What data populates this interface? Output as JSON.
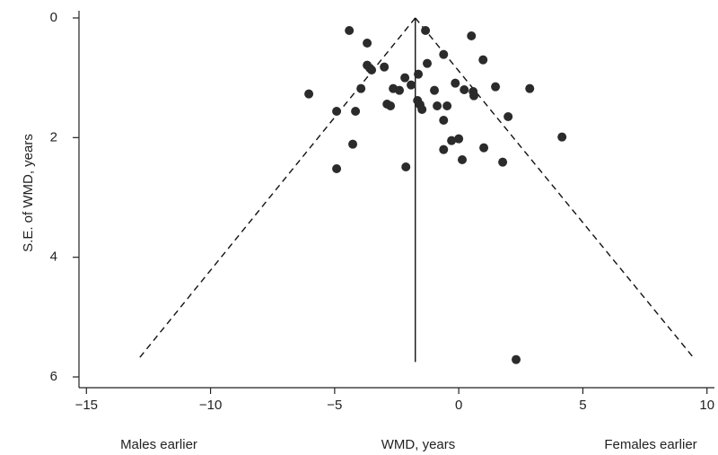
{
  "chart_data": {
    "type": "scatter",
    "xlabel": "WMD, years",
    "ylabel": "S.E. of WMD, years",
    "annotations": [
      "Males earlier",
      "Females earlier"
    ],
    "xlim": [
      -15.3,
      10.3
    ],
    "ylim": [
      -0.12,
      6.18
    ],
    "y_inverted": true,
    "xticks": [
      {
        "value": -15,
        "label": "−15"
      },
      {
        "value": -10,
        "label": "−10"
      },
      {
        "value": -5,
        "label": "−5"
      },
      0,
      5,
      10
    ],
    "yticks": [
      0,
      2,
      4,
      6
    ],
    "color": "#2b2b2b",
    "x": [
      -4.41,
      -1.34,
      0.51,
      -3.69,
      -0.61,
      0.98,
      -1.27,
      -3.69,
      -3.58,
      -3.0,
      -3.51,
      -1.63,
      -2.17,
      -0.14,
      -1.92,
      0.22,
      -3.94,
      -6.04,
      1.48,
      2.86,
      -2.64,
      -2.39,
      -0.98,
      0.58,
      0.61,
      -1.66,
      -1.56,
      -1.48,
      -2.89,
      -2.75,
      -0.87,
      -0.47,
      -4.92,
      -4.16,
      1.99,
      -0.61,
      4.16,
      -0.29,
      0.0,
      -4.27,
      1.01,
      -0.61,
      0.14,
      1.77,
      -2.13,
      -4.92,
      2.31
    ],
    "values": [
      0.21,
      0.21,
      0.3,
      0.42,
      0.61,
      0.7,
      0.76,
      0.79,
      0.84,
      0.82,
      0.87,
      0.94,
      1.0,
      1.09,
      1.12,
      1.2,
      1.18,
      1.27,
      1.15,
      1.18,
      1.18,
      1.21,
      1.21,
      1.23,
      1.3,
      1.38,
      1.45,
      1.53,
      1.44,
      1.47,
      1.47,
      1.47,
      1.56,
      1.56,
      1.65,
      1.71,
      1.99,
      2.05,
      2.02,
      2.11,
      2.17,
      2.2,
      2.37,
      2.41,
      2.49,
      2.52,
      5.71
    ],
    "reference_lines": [
      {
        "style": "solid",
        "x": [
          -1.75,
          -1.75
        ],
        "y": [
          0,
          5.75
        ]
      },
      {
        "style": "dashed",
        "x": [
          -1.75,
          -12.9
        ],
        "y": [
          0,
          5.7
        ]
      },
      {
        "style": "dashed",
        "x": [
          -1.75,
          9.5
        ],
        "y": [
          0,
          5.7
        ]
      }
    ]
  }
}
